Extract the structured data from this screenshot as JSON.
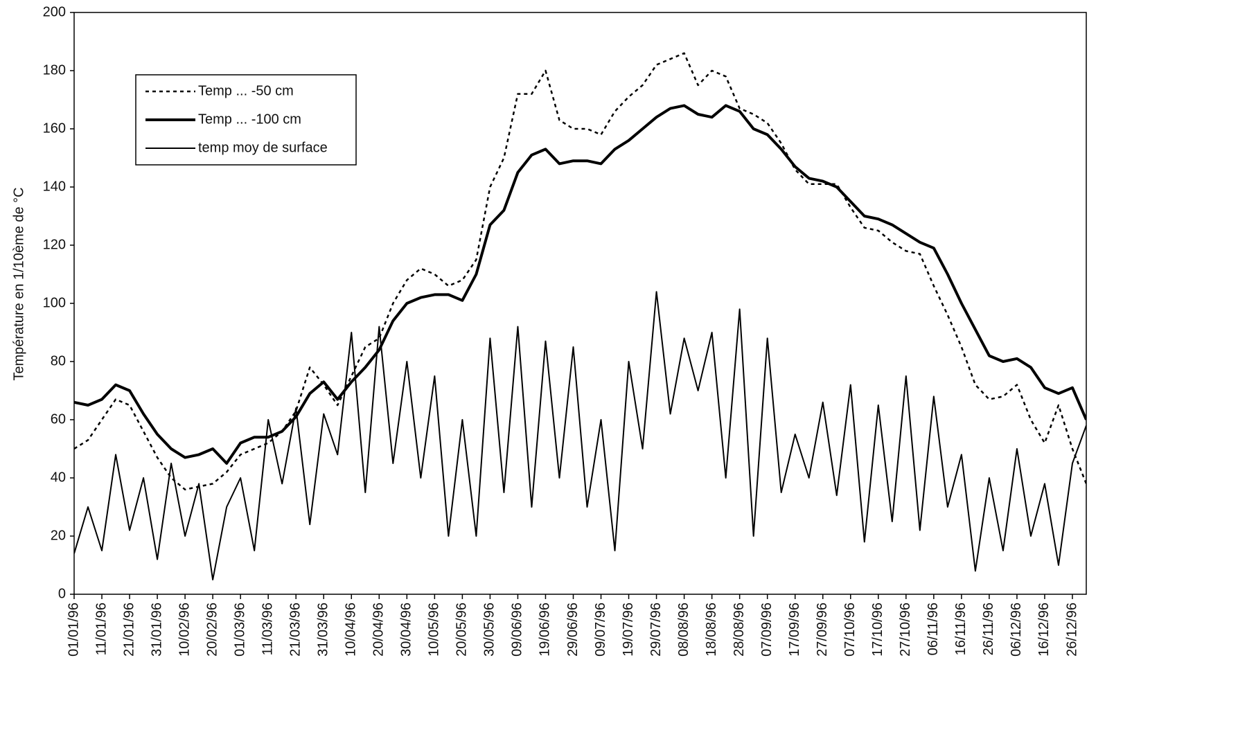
{
  "chart_data": {
    "type": "line",
    "y_label": "Température en 1/10ème de °C",
    "categories": [
      "01/01/96",
      null,
      "11/01/96",
      null,
      "21/01/96",
      null,
      "31/01/96",
      null,
      "10/02/96",
      null,
      "20/02/96",
      null,
      "01/03/96",
      null,
      "11/03/96",
      null,
      "21/03/96",
      null,
      "31/03/96",
      null,
      "10/04/96",
      null,
      "20/04/96",
      null,
      "30/04/96",
      null,
      "10/05/96",
      null,
      "20/05/96",
      null,
      "30/05/96",
      null,
      "09/06/96",
      null,
      "19/06/96",
      null,
      "29/06/96",
      null,
      "09/07/96",
      null,
      "19/07/96",
      null,
      "29/07/96",
      null,
      "08/08/96",
      null,
      "18/08/96",
      null,
      "28/08/96",
      null,
      "07/09/96",
      null,
      "17/09/96",
      null,
      "27/09/96",
      null,
      "07/10/96",
      null,
      "17/10/96",
      null,
      "27/10/96",
      null,
      "06/11/96",
      null,
      "16/11/96",
      null,
      "26/11/96",
      null,
      "06/12/96",
      null,
      "16/12/96",
      null,
      "26/12/96",
      null
    ],
    "series": [
      {
        "name": "Temp ... -50 cm",
        "color": "#000000",
        "dash": "dotted",
        "width": 2.5,
        "values": [
          50,
          53,
          60,
          67,
          65,
          56,
          47,
          40,
          36,
          37,
          38,
          42,
          48,
          50,
          52,
          56,
          63,
          78,
          72,
          65,
          75,
          85,
          88,
          100,
          108,
          112,
          110,
          106,
          108,
          115,
          140,
          150,
          172,
          172,
          180,
          163,
          160,
          160,
          158,
          166,
          171,
          175,
          182,
          184,
          186,
          175,
          180,
          178,
          167,
          165,
          162,
          155,
          146,
          141,
          141,
          141,
          133,
          126,
          125,
          121,
          118,
          117,
          106,
          96,
          85,
          72,
          67,
          68,
          72,
          60,
          52,
          65,
          50,
          38
        ]
      },
      {
        "name": "Temp ... -100 cm",
        "color": "#000000",
        "dash": "solid",
        "width": 4,
        "values": [
          66,
          65,
          67,
          72,
          70,
          62,
          55,
          50,
          47,
          48,
          50,
          45,
          52,
          54,
          54,
          56,
          61,
          69,
          73,
          67,
          73,
          78,
          84,
          94,
          100,
          102,
          103,
          103,
          101,
          110,
          127,
          132,
          145,
          151,
          153,
          148,
          149,
          149,
          148,
          153,
          156,
          160,
          164,
          167,
          168,
          165,
          164,
          168,
          166,
          160,
          158,
          153,
          147,
          143,
          142,
          140,
          135,
          130,
          129,
          127,
          124,
          121,
          119,
          110,
          100,
          91,
          82,
          80,
          81,
          78,
          71,
          69,
          71,
          60
        ]
      },
      {
        "name": "temp moy de surface",
        "color": "#000000",
        "dash": "solid",
        "width": 2,
        "values": [
          14,
          30,
          15,
          48,
          22,
          40,
          12,
          45,
          20,
          38,
          5,
          30,
          40,
          15,
          60,
          38,
          64,
          24,
          62,
          48,
          90,
          35,
          92,
          45,
          80,
          40,
          75,
          20,
          60,
          20,
          88,
          35,
          92,
          30,
          87,
          40,
          85,
          30,
          60,
          15,
          80,
          50,
          104,
          62,
          88,
          70,
          90,
          40,
          98,
          20,
          88,
          35,
          55,
          40,
          66,
          34,
          72,
          18,
          65,
          25,
          75,
          22,
          68,
          30,
          48,
          8,
          40,
          15,
          50,
          20,
          38,
          10,
          45,
          58
        ]
      }
    ],
    "ylim": [
      0,
      200
    ],
    "yticks": [
      0,
      20,
      40,
      60,
      80,
      100,
      120,
      140,
      160,
      180,
      200
    ],
    "legend": "upper-left",
    "grid": false
  }
}
